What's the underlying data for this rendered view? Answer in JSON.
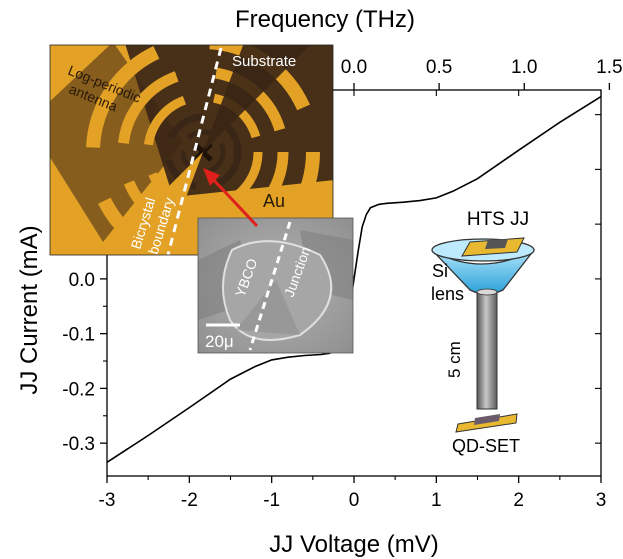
{
  "chart_data": {
    "type": "line",
    "title": "",
    "xlabel": "JJ Voltage (mV)",
    "ylabel": "JJ Current (mA)",
    "x2label": "Frequency (THz)",
    "xlim": [
      -3,
      3
    ],
    "ylim": [
      -0.36,
      0.345
    ],
    "x_ticks": [
      -3,
      -2,
      -1,
      0,
      1,
      2,
      3
    ],
    "x_tick_labels": [
      "-3",
      "-2",
      "-1",
      "0",
      "1",
      "2",
      "3"
    ],
    "y_ticks": [
      -0.3,
      -0.2,
      -0.1,
      0.0
    ],
    "y_tick_labels": [
      "-0.3",
      "-0.2",
      "-0.1",
      "0.0"
    ],
    "x2_ticks": [
      0.0,
      0.5,
      1.0,
      1.5
    ],
    "x2_tick_labels": [
      "0.0",
      "0.5",
      "1.0",
      "1.5"
    ],
    "x2_per_mV": 0.4836,
    "grid": false,
    "legend": "none",
    "series": [
      {
        "color": "#000000",
        "x": [
          -3.0,
          -2.5,
          -2.0,
          -1.5,
          -1.2,
          -1.0,
          -0.8,
          -0.6,
          -0.4,
          -0.3,
          -0.2,
          -0.15,
          -0.1,
          -0.05,
          0.0,
          0.05,
          0.1,
          0.15,
          0.2,
          0.3,
          0.4,
          0.6,
          0.8,
          1.0,
          1.2,
          1.5,
          2.0,
          2.5,
          3.0
        ],
        "y": [
          -0.335,
          -0.286,
          -0.235,
          -0.183,
          -0.16,
          -0.148,
          -0.143,
          -0.14,
          -0.138,
          -0.136,
          -0.13,
          -0.118,
          -0.095,
          -0.05,
          0.0,
          0.05,
          0.095,
          0.118,
          0.13,
          0.136,
          0.138,
          0.14,
          0.143,
          0.148,
          0.16,
          0.183,
          0.235,
          0.286,
          0.333
        ]
      }
    ]
  },
  "inset_antenna": {
    "labels": {
      "substrate": "Substrate",
      "antenna": "Log-periodic antenna",
      "boundary": "Bicrystal boundary",
      "au": "Au"
    },
    "colors": {
      "gold": "#e3a126",
      "dark": "#3a2616"
    }
  },
  "inset_sem": {
    "labels": {
      "ybco": "YBCO",
      "junction": "Junction",
      "scale": "20μ"
    }
  },
  "setup": {
    "labels": {
      "hts": "HTS JJ",
      "si": "Si",
      "lens": "lens",
      "length": "5 cm",
      "qdset": "QD-SET"
    },
    "colors": {
      "lens": "#5ec8f0",
      "rod": "#8c8c8c",
      "chip": "#e8b830"
    }
  }
}
